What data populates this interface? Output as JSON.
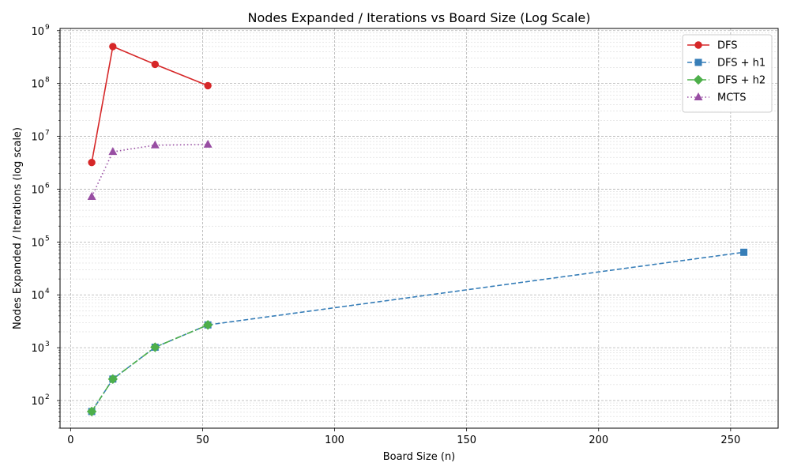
{
  "chart_data": {
    "type": "line",
    "title": "Nodes Expanded / Iterations vs Board Size (Log Scale)",
    "xlabel": "Board Size (n)",
    "ylabel": "Nodes Expanded / Iterations (log scale)",
    "xlim": [
      -4,
      268
    ],
    "ylim": [
      30,
      1100000000
    ],
    "yscale": "log",
    "grid": "both, major and minor",
    "legend_position": "top-right",
    "x_ticks": [
      {
        "value": 0,
        "label": "0"
      },
      {
        "value": 50,
        "label": "50"
      },
      {
        "value": 100,
        "label": "100"
      },
      {
        "value": 150,
        "label": "150"
      },
      {
        "value": 200,
        "label": "200"
      },
      {
        "value": 250,
        "label": "250"
      }
    ],
    "y_ticks": [
      {
        "exp": 2,
        "label": "10"
      },
      {
        "exp": 3,
        "label": "10"
      },
      {
        "exp": 4,
        "label": "10"
      },
      {
        "exp": 5,
        "label": "10"
      },
      {
        "exp": 6,
        "label": "10"
      },
      {
        "exp": 7,
        "label": "10"
      },
      {
        "exp": 8,
        "label": "10"
      },
      {
        "exp": 9,
        "label": "10"
      }
    ],
    "series": [
      {
        "name": "DFS",
        "color": "#d62728",
        "marker": "circle",
        "linestyle": "solid",
        "x": [
          8,
          16,
          32,
          52
        ],
        "y": [
          3200000,
          500000000,
          230000000,
          91000000
        ]
      },
      {
        "name": "DFS + h1",
        "color": "#377eb8",
        "marker": "square",
        "linestyle": "dashed",
        "x": [
          8,
          16,
          32,
          52,
          255
        ],
        "y": [
          62,
          255,
          1020,
          2700,
          64000
        ]
      },
      {
        "name": "DFS + h2",
        "color": "#4daf4a",
        "marker": "diamond",
        "linestyle": "dashdot",
        "x": [
          8,
          16,
          32,
          52
        ],
        "y": [
          62,
          255,
          1020,
          2700
        ]
      },
      {
        "name": "MCTS",
        "color": "#984ea3",
        "marker": "triangle",
        "linestyle": "dotted",
        "x": [
          8,
          16,
          32,
          52
        ],
        "y": [
          720000,
          5100000,
          6800000,
          7000000
        ]
      }
    ]
  }
}
